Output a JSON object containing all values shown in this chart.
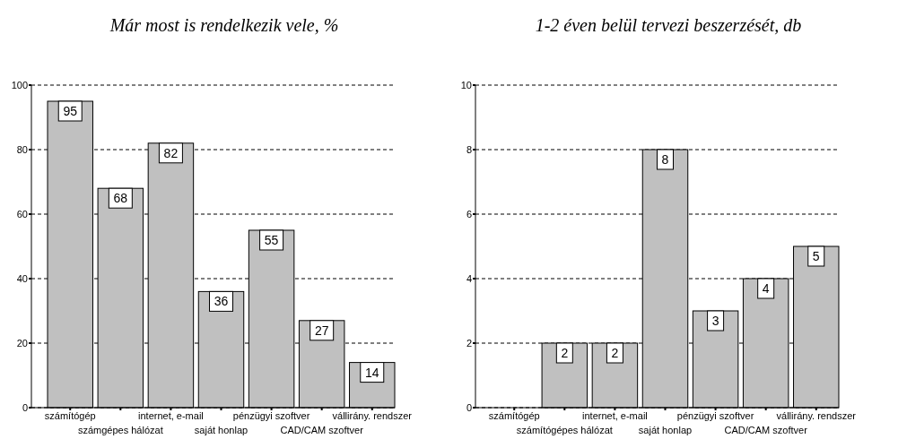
{
  "chart_data": [
    {
      "type": "bar",
      "title": "Már most is rendelkezik vele, %",
      "categories": [
        "számítógép",
        "számgépes hálózat",
        "internet, e-mail",
        "saját honlap",
        "pénzügyi szoftver",
        "CAD/CAM szoftver",
        "vállirány. rendszer"
      ],
      "values": [
        95,
        68,
        82,
        36,
        55,
        27,
        14
      ],
      "color": "#c0c0c0",
      "ylim": [
        0,
        100
      ],
      "yticks": [
        0,
        20,
        40,
        60,
        80,
        100
      ],
      "grid": "y",
      "data_labels": true
    },
    {
      "type": "bar",
      "title": "1-2 éven belül tervezi beszerzését, db",
      "categories": [
        "számítógép",
        "számítógépes hálózat",
        "internet, e-mail",
        "saját honlap",
        "pénzügyi szoftver",
        "CAD/CAM szoftver",
        "vállirány. rendszer"
      ],
      "values": [
        0,
        2,
        2,
        8,
        3,
        4,
        5
      ],
      "value_labels": [
        null,
        "2",
        "2",
        "8",
        "3",
        "4",
        "5"
      ],
      "color": "#c0c0c0",
      "ylim": [
        0,
        10
      ],
      "yticks": [
        0,
        2,
        4,
        6,
        8,
        10
      ],
      "grid": "y"
    }
  ]
}
